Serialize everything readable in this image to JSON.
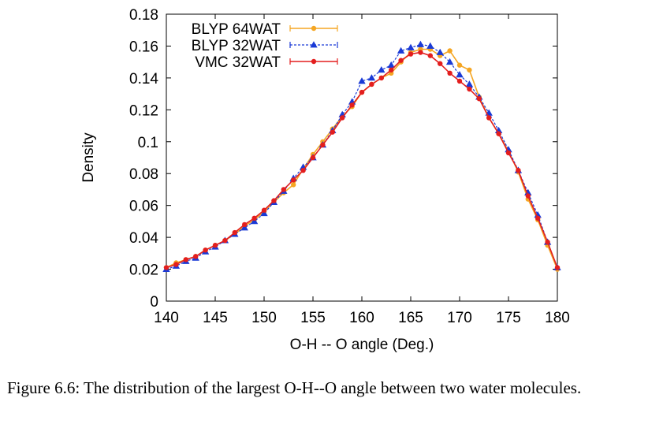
{
  "chart_data": {
    "type": "line",
    "xlabel": "O-H -- O angle (Deg.)",
    "ylabel": "Density",
    "xlim": [
      140,
      180
    ],
    "ylim": [
      0,
      0.18
    ],
    "x_ticks": [
      "140",
      "145",
      "150",
      "155",
      "160",
      "165",
      "170",
      "175",
      "180"
    ],
    "y_ticks": [
      "0",
      "0.02",
      "0.04",
      "0.06",
      "0.08",
      "0.1",
      "0.12",
      "0.14",
      "0.16",
      "0.18"
    ],
    "legend_position": "top-left",
    "grid": false,
    "series": [
      {
        "name": "BLYP 64WAT",
        "color": "#f5a623",
        "marker": "circle",
        "dashed": false,
        "x": [
          140,
          141,
          142,
          143,
          144,
          145,
          146,
          147,
          148,
          149,
          150,
          151,
          152,
          153,
          154,
          155,
          156,
          157,
          158,
          159,
          160,
          161,
          162,
          163,
          164,
          165,
          166,
          167,
          168,
          169,
          170,
          171,
          172,
          173,
          174,
          175,
          176,
          177,
          178,
          179,
          180
        ],
        "y": [
          0.021,
          0.024,
          0.026,
          0.028,
          0.032,
          0.035,
          0.038,
          0.042,
          0.047,
          0.051,
          0.056,
          0.062,
          0.068,
          0.073,
          0.083,
          0.092,
          0.1,
          0.108,
          0.116,
          0.122,
          0.131,
          0.136,
          0.14,
          0.143,
          0.15,
          0.156,
          0.158,
          0.158,
          0.154,
          0.157,
          0.148,
          0.145,
          0.128,
          0.115,
          0.105,
          0.094,
          0.081,
          0.064,
          0.051,
          0.035,
          0.02
        ]
      },
      {
        "name": "BLYP 32WAT",
        "color": "#1a3ad6",
        "marker": "triangle",
        "dashed": true,
        "x": [
          140,
          141,
          142,
          143,
          144,
          145,
          146,
          147,
          148,
          149,
          150,
          151,
          152,
          153,
          154,
          155,
          156,
          157,
          158,
          159,
          160,
          161,
          162,
          163,
          164,
          165,
          166,
          167,
          168,
          169,
          170,
          171,
          172,
          173,
          174,
          175,
          176,
          177,
          178,
          179,
          180
        ],
        "y": [
          0.02,
          0.022,
          0.025,
          0.027,
          0.031,
          0.034,
          0.038,
          0.042,
          0.046,
          0.05,
          0.055,
          0.062,
          0.069,
          0.077,
          0.084,
          0.09,
          0.098,
          0.107,
          0.117,
          0.125,
          0.138,
          0.14,
          0.145,
          0.148,
          0.157,
          0.159,
          0.161,
          0.16,
          0.156,
          0.15,
          0.142,
          0.136,
          0.128,
          0.118,
          0.107,
          0.095,
          0.082,
          0.068,
          0.054,
          0.037,
          0.021
        ]
      },
      {
        "name": "VMC 32WAT",
        "color": "#e31e1e",
        "marker": "circle",
        "dashed": false,
        "x": [
          140,
          141,
          142,
          143,
          144,
          145,
          146,
          147,
          148,
          149,
          150,
          151,
          152,
          153,
          154,
          155,
          156,
          157,
          158,
          159,
          160,
          161,
          162,
          163,
          164,
          165,
          166,
          167,
          168,
          169,
          170,
          171,
          172,
          173,
          174,
          175,
          176,
          177,
          178,
          179,
          180
        ],
        "y": [
          0.021,
          0.023,
          0.026,
          0.028,
          0.032,
          0.035,
          0.038,
          0.043,
          0.048,
          0.052,
          0.057,
          0.063,
          0.07,
          0.076,
          0.082,
          0.09,
          0.098,
          0.106,
          0.115,
          0.123,
          0.131,
          0.136,
          0.14,
          0.145,
          0.151,
          0.155,
          0.156,
          0.154,
          0.149,
          0.143,
          0.138,
          0.133,
          0.127,
          0.115,
          0.105,
          0.093,
          0.082,
          0.066,
          0.052,
          0.037,
          0.021
        ]
      }
    ]
  },
  "caption": "Figure 6.6: The distribution of the largest O-H--O angle between two water molecules."
}
